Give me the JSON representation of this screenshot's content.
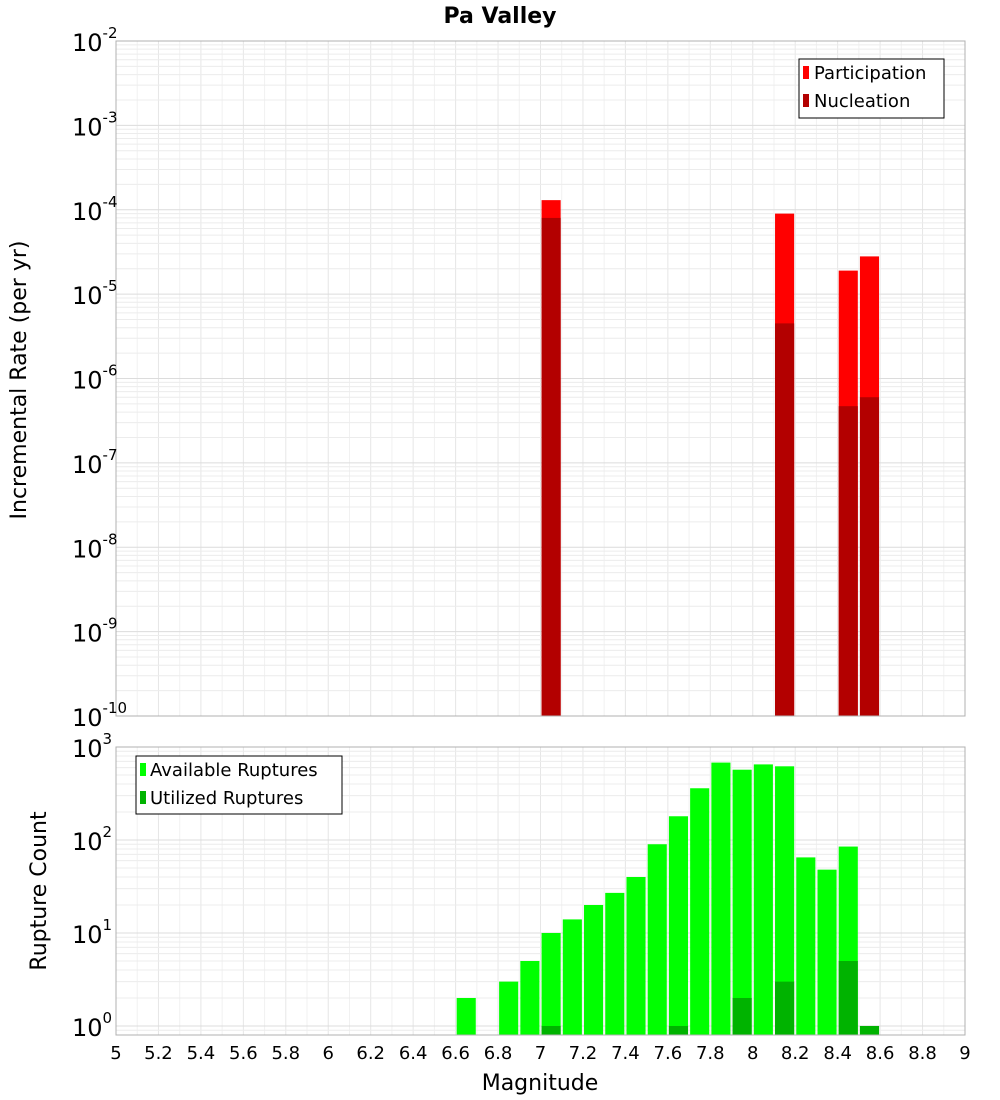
{
  "chart_data": [
    {
      "type": "bar",
      "title": "Pa Valley",
      "ylabel": "Incremental Rate (per yr)",
      "xlabel": "",
      "y_scale": "log",
      "ylim": [
        1e-10,
        0.01
      ],
      "xlim": [
        5,
        9
      ],
      "bar_width": 0.09,
      "grid": true,
      "legend_position": "top-right",
      "y_ticks": [
        {
          "base": "10",
          "exp": "-10",
          "value": 1e-10
        },
        {
          "base": "10",
          "exp": "-9",
          "value": 1e-09
        },
        {
          "base": "10",
          "exp": "-8",
          "value": 1e-08
        },
        {
          "base": "10",
          "exp": "-7",
          "value": 1e-07
        },
        {
          "base": "10",
          "exp": "-6",
          "value": 1e-06
        },
        {
          "base": "10",
          "exp": "-5",
          "value": 1e-05
        },
        {
          "base": "10",
          "exp": "-4",
          "value": 0.0001
        },
        {
          "base": "10",
          "exp": "-3",
          "value": 0.001
        },
        {
          "base": "10",
          "exp": "-2",
          "value": 0.01
        }
      ],
      "series": [
        {
          "name": "Participation",
          "color": "#ff0000",
          "points": [
            {
              "x": 7.05,
              "y": 0.00013
            },
            {
              "x": 8.15,
              "y": 9e-05
            },
            {
              "x": 8.45,
              "y": 1.9e-05
            },
            {
              "x": 8.55,
              "y": 2.8e-05
            }
          ]
        },
        {
          "name": "Nucleation",
          "color": "#b30000",
          "points": [
            {
              "x": 7.05,
              "y": 8e-05
            },
            {
              "x": 8.15,
              "y": 4.5e-06
            },
            {
              "x": 8.45,
              "y": 4.7e-07
            },
            {
              "x": 8.55,
              "y": 6e-07
            }
          ]
        }
      ]
    },
    {
      "type": "bar",
      "title": "",
      "ylabel": "Rupture Count",
      "xlabel": "Magnitude",
      "y_scale": "log",
      "ylim": [
        0.8,
        1000
      ],
      "xlim": [
        5,
        9
      ],
      "bar_width": 0.09,
      "grid": true,
      "legend_position": "top-left",
      "x_ticks": [
        "5",
        "5.2",
        "5.4",
        "5.6",
        "5.8",
        "6",
        "6.2",
        "6.4",
        "6.6",
        "6.8",
        "7",
        "7.2",
        "7.4",
        "7.6",
        "7.8",
        "8",
        "8.2",
        "8.4",
        "8.6",
        "8.8",
        "9"
      ],
      "y_ticks": [
        {
          "base": "10",
          "exp": "0",
          "value": 1
        },
        {
          "base": "10",
          "exp": "1",
          "value": 10
        },
        {
          "base": "10",
          "exp": "2",
          "value": 100
        },
        {
          "base": "10",
          "exp": "3",
          "value": 1000
        }
      ],
      "series": [
        {
          "name": "Available Ruptures",
          "color": "#00ff00",
          "points": [
            {
              "x": 6.65,
              "y": 2
            },
            {
              "x": 6.85,
              "y": 3
            },
            {
              "x": 6.95,
              "y": 5
            },
            {
              "x": 7.05,
              "y": 10
            },
            {
              "x": 7.15,
              "y": 14
            },
            {
              "x": 7.25,
              "y": 20
            },
            {
              "x": 7.35,
              "y": 27
            },
            {
              "x": 7.45,
              "y": 40
            },
            {
              "x": 7.55,
              "y": 90
            },
            {
              "x": 7.65,
              "y": 180
            },
            {
              "x": 7.75,
              "y": 360
            },
            {
              "x": 7.85,
              "y": 680
            },
            {
              "x": 7.95,
              "y": 570
            },
            {
              "x": 8.05,
              "y": 650
            },
            {
              "x": 8.15,
              "y": 620
            },
            {
              "x": 8.25,
              "y": 65
            },
            {
              "x": 8.35,
              "y": 48
            },
            {
              "x": 8.45,
              "y": 85
            },
            {
              "x": 8.55,
              "y": 1
            }
          ]
        },
        {
          "name": "Utilized Ruptures",
          "color": "#00b300",
          "points": [
            {
              "x": 7.05,
              "y": 1
            },
            {
              "x": 7.65,
              "y": 1
            },
            {
              "x": 7.95,
              "y": 2
            },
            {
              "x": 8.15,
              "y": 3
            },
            {
              "x": 8.45,
              "y": 5
            },
            {
              "x": 8.55,
              "y": 1
            }
          ]
        }
      ]
    }
  ]
}
